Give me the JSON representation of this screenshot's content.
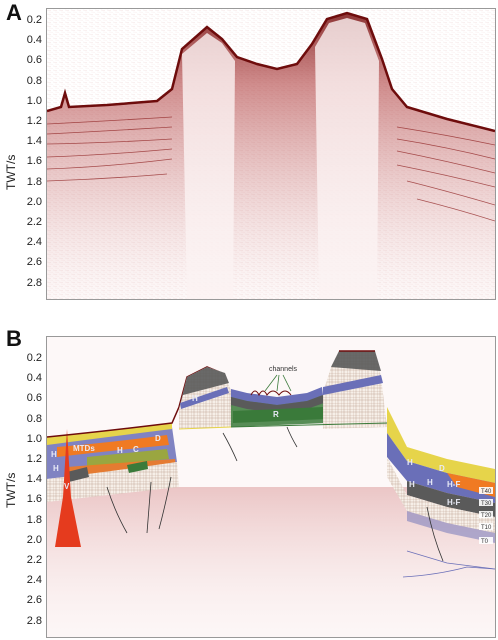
{
  "panels": [
    {
      "letter": "A",
      "ylabel": "TWT/s",
      "ticks": [
        "0.2",
        "0.4",
        "0.6",
        "0.8",
        "1.0",
        "1.2",
        "1.4",
        "1.6",
        "1.8",
        "2.0",
        "2.2",
        "2.4",
        "2.6",
        "2.8"
      ]
    },
    {
      "letter": "B",
      "ylabel": "TWT/s",
      "ticks": [
        "0.2",
        "0.4",
        "0.6",
        "0.8",
        "1.0",
        "1.2",
        "1.4",
        "1.6",
        "1.8",
        "2.0",
        "2.2",
        "2.4",
        "2.6",
        "2.8"
      ]
    }
  ],
  "annotations": {
    "channels": "channels",
    "mtds": "MTDs",
    "h": "H",
    "c": "C",
    "d": "D",
    "v": "V",
    "r": "R",
    "hf": "H-F",
    "t_labels": [
      "T40",
      "T30",
      "T20",
      "T10",
      "T0"
    ]
  },
  "colors": {
    "seismic": "#8b1a1a",
    "orange": "#f07a22",
    "purple": "#6a6fb8",
    "green": "#3a7a3a",
    "olive": "#9aa640",
    "yellow": "#e6d44a",
    "red": "#e53b1e",
    "grey": "#5a5a5a"
  }
}
